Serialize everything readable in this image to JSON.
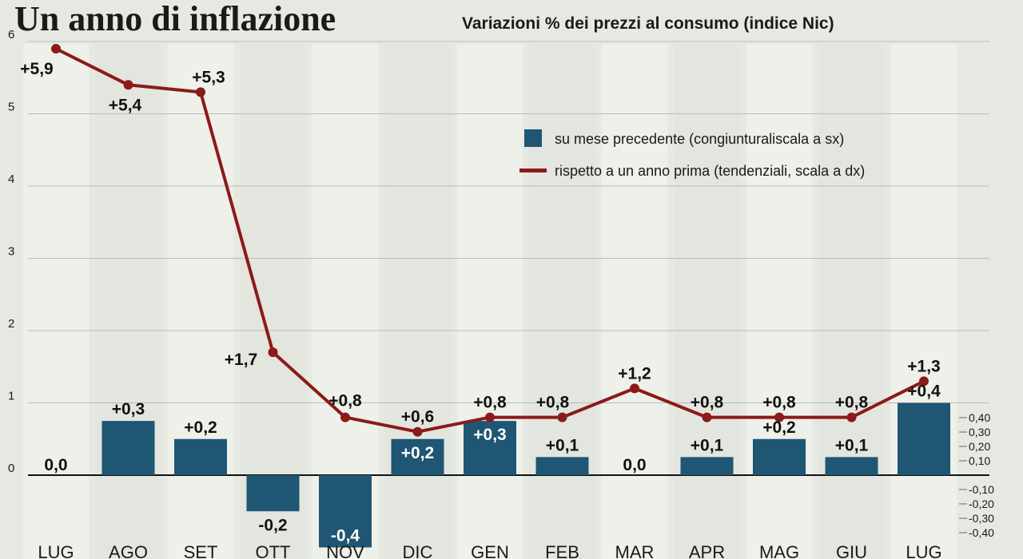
{
  "chart_data": {
    "type": "bar",
    "title": "Un anno di inflazione",
    "subtitle": "Variazioni % dei prezzi al consumo (indice Nic)",
    "categories": [
      "LUG",
      "AGO",
      "SET",
      "OTT",
      "NOV",
      "DIC",
      "GEN",
      "FEB",
      "MAR",
      "APR",
      "MAG",
      "GIU",
      "LUG"
    ],
    "left_axis": {
      "ylim": [
        -0.8,
        6
      ],
      "ticks": [
        0,
        1,
        2,
        3,
        4,
        5,
        6
      ],
      "tick_labels": [
        "0",
        "1",
        "2",
        "3",
        "4",
        "5",
        "6"
      ]
    },
    "right_axis": {
      "ylim": [
        -0.4,
        0.4
      ],
      "ticks": [
        0.4,
        0.3,
        0.2,
        0.1,
        -0.1,
        -0.2,
        -0.3,
        -0.4
      ],
      "tick_labels": [
        "0,40",
        "0,30",
        "0,20",
        "0,10",
        "-0,10",
        "-0,20",
        "-0,30",
        "-0,40"
      ]
    },
    "series": [
      {
        "name": "su mese precedente (congiunturaliscala a sx)",
        "kind": "bar",
        "color": "#1f5673",
        "values": [
          0.0,
          0.3,
          0.2,
          -0.2,
          -0.4,
          0.2,
          0.3,
          0.1,
          0.0,
          0.1,
          0.2,
          0.1,
          0.4
        ],
        "labels": [
          "0,0",
          "+0,3",
          "+0,2",
          "-0,2",
          "-0,4",
          "+0,2",
          "+0,3",
          "+0,1",
          "0,0",
          "+0,1",
          "+0,2",
          "+0,1",
          "+0,4"
        ]
      },
      {
        "name": "rispetto a un anno prima (tendenziali, scala a dx)",
        "kind": "line",
        "color": "#8b1a1a",
        "values": [
          5.9,
          5.4,
          5.3,
          1.7,
          0.8,
          0.6,
          0.8,
          0.8,
          1.2,
          0.8,
          0.8,
          0.8,
          1.3
        ],
        "labels": [
          "+5,9",
          "+5,4",
          "+5,3",
          "+1,7",
          "+0,8",
          "+0,6",
          "+0,8",
          "+0,8",
          "+1,2",
          "+0,8",
          "+0,8",
          "+0,8",
          "+1,3"
        ]
      }
    ],
    "grid": true,
    "legend_position": "top-right"
  }
}
